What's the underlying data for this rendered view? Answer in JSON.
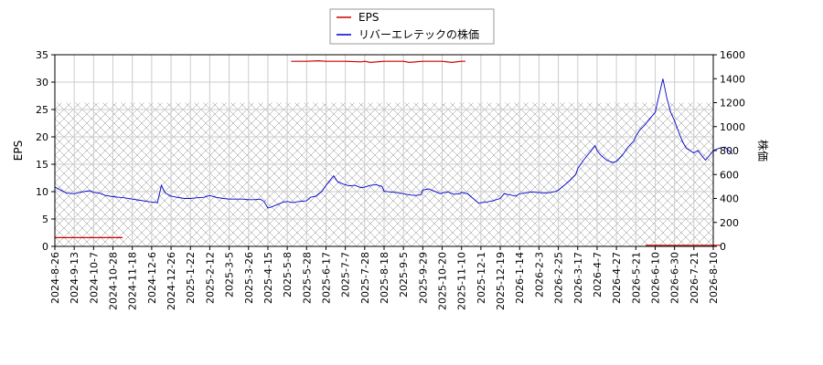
{
  "chart_data": {
    "type": "line",
    "x_tick_labels": [
      "2024-8-26",
      "2024-9-13",
      "2024-10-7",
      "2024-10-28",
      "2024-11-18",
      "2024-12-6",
      "2024-12-26",
      "2025-1-22",
      "2025-2-12",
      "2025-3-5",
      "2025-3-26",
      "2025-4-15",
      "2025-5-8",
      "2025-5-28",
      "2025-6-17",
      "2025-7-7",
      "2025-7-28",
      "2025-8-18",
      "2025-9-5",
      "2025-9-29",
      "2025-10-20",
      "2025-11-10",
      "2025-12-1",
      "2025-12-19",
      "2026-1-14",
      "2026-2-3",
      "2026-2-25",
      "2026-3-17",
      "2026-4-7",
      "2026-4-27",
      "2026-5-21",
      "2026-6-10",
      "2026-6-30",
      "2026-7-21",
      "2026-8-10"
    ],
    "left_axis": {
      "label": "EPS",
      "ylim": [
        0,
        35
      ],
      "ticks": [
        0,
        5,
        10,
        15,
        20,
        25,
        30,
        35
      ]
    },
    "right_axis": {
      "label": "株価",
      "ylim": [
        0,
        1600
      ],
      "ticks": [
        0,
        200,
        400,
        600,
        800,
        1000,
        1200,
        1400,
        1600
      ]
    },
    "legend": {
      "placement": "top-center"
    },
    "grid": true,
    "shaded_ranges": [
      {
        "x_start_index": 0,
        "x_end_index": 34,
        "y_range": [
          0,
          1200
        ],
        "axis": "right",
        "hatch": "cross"
      }
    ],
    "series": [
      {
        "name": "EPS",
        "axis": "left",
        "color": "#cc0000",
        "segments": [
          [
            [
              0,
              1.6
            ],
            [
              1,
              1.6
            ],
            [
              2,
              1.6
            ],
            [
              3,
              1.6
            ],
            [
              3.5,
              1.6
            ]
          ],
          [
            [
              12.2,
              33.8
            ],
            [
              13,
              33.8
            ],
            [
              13.6,
              33.9
            ],
            [
              14,
              33.8
            ],
            [
              15,
              33.8
            ],
            [
              15.8,
              33.7
            ],
            [
              16,
              33.8
            ],
            [
              16.3,
              33.6
            ],
            [
              17,
              33.8
            ],
            [
              18,
              33.8
            ],
            [
              18.3,
              33.6
            ],
            [
              19,
              33.8
            ],
            [
              20,
              33.8
            ],
            [
              20.5,
              33.6
            ],
            [
              21,
              33.8
            ],
            [
              21.2,
              33.8
            ]
          ],
          [
            [
              30.5,
              0.2
            ],
            [
              31,
              0.2
            ],
            [
              32,
              0.2
            ],
            [
              33,
              0.2
            ],
            [
              34,
              0.2
            ],
            [
              34.4,
              0.2
            ]
          ]
        ]
      },
      {
        "name": "リバーエレテックの株価",
        "axis": "right",
        "color": "#0000cc",
        "points": [
          [
            0,
            495
          ],
          [
            0.3,
            470
          ],
          [
            0.6,
            445
          ],
          [
            1,
            440
          ],
          [
            1.4,
            455
          ],
          [
            1.8,
            465
          ],
          [
            2,
            450
          ],
          [
            2.3,
            445
          ],
          [
            2.6,
            425
          ],
          [
            3,
            415
          ],
          [
            3.3,
            410
          ],
          [
            3.6,
            405
          ],
          [
            4,
            395
          ],
          [
            4.4,
            385
          ],
          [
            4.8,
            375
          ],
          [
            5,
            370
          ],
          [
            5.3,
            365
          ],
          [
            5.5,
            510
          ],
          [
            5.7,
            445
          ],
          [
            6,
            420
          ],
          [
            6.3,
            410
          ],
          [
            6.7,
            400
          ],
          [
            7,
            400
          ],
          [
            7.3,
            405
          ],
          [
            7.7,
            410
          ],
          [
            8,
            425
          ],
          [
            8.3,
            410
          ],
          [
            8.7,
            400
          ],
          [
            9,
            395
          ],
          [
            9.3,
            395
          ],
          [
            9.7,
            395
          ],
          [
            10,
            390
          ],
          [
            10.3,
            390
          ],
          [
            10.6,
            395
          ],
          [
            10.8,
            375
          ],
          [
            11,
            320
          ],
          [
            11.2,
            330
          ],
          [
            11.5,
            350
          ],
          [
            11.8,
            370
          ],
          [
            12,
            375
          ],
          [
            12.3,
            365
          ],
          [
            12.6,
            375
          ],
          [
            13,
            380
          ],
          [
            13.2,
            410
          ],
          [
            13.5,
            420
          ],
          [
            13.8,
            460
          ],
          [
            14,
            510
          ],
          [
            14.2,
            550
          ],
          [
            14.4,
            590
          ],
          [
            14.6,
            540
          ],
          [
            14.9,
            520
          ],
          [
            15.2,
            505
          ],
          [
            15.5,
            510
          ],
          [
            15.8,
            490
          ],
          [
            16,
            495
          ],
          [
            16.3,
            510
          ],
          [
            16.6,
            515
          ],
          [
            16.9,
            500
          ],
          [
            17,
            460
          ],
          [
            17.3,
            455
          ],
          [
            17.6,
            450
          ],
          [
            18,
            440
          ],
          [
            18.3,
            430
          ],
          [
            18.6,
            425
          ],
          [
            18.9,
            430
          ],
          [
            19,
            470
          ],
          [
            19.3,
            480
          ],
          [
            19.6,
            460
          ],
          [
            19.9,
            440
          ],
          [
            20,
            445
          ],
          [
            20.3,
            455
          ],
          [
            20.6,
            435
          ],
          [
            20.9,
            440
          ],
          [
            21,
            450
          ],
          [
            21.3,
            440
          ],
          [
            21.6,
            400
          ],
          [
            21.9,
            360
          ],
          [
            22,
            365
          ],
          [
            22.3,
            370
          ],
          [
            22.6,
            380
          ],
          [
            23,
            400
          ],
          [
            23.2,
            440
          ],
          [
            23.5,
            430
          ],
          [
            23.8,
            420
          ],
          [
            24,
            440
          ],
          [
            24.3,
            445
          ],
          [
            24.6,
            455
          ],
          [
            24.9,
            450
          ],
          [
            25,
            450
          ],
          [
            25.3,
            445
          ],
          [
            25.6,
            450
          ],
          [
            25.9,
            460
          ],
          [
            26,
            470
          ],
          [
            26.3,
            510
          ],
          [
            26.6,
            550
          ],
          [
            26.9,
            600
          ],
          [
            27,
            650
          ],
          [
            27.3,
            720
          ],
          [
            27.6,
            780
          ],
          [
            27.9,
            840
          ],
          [
            28,
            800
          ],
          [
            28.2,
            760
          ],
          [
            28.5,
            720
          ],
          [
            28.8,
            700
          ],
          [
            29,
            710
          ],
          [
            29.3,
            760
          ],
          [
            29.6,
            830
          ],
          [
            29.9,
            880
          ],
          [
            30,
            920
          ],
          [
            30.2,
            970
          ],
          [
            30.5,
            1020
          ],
          [
            30.8,
            1080
          ],
          [
            31,
            1120
          ],
          [
            31.2,
            1260
          ],
          [
            31.4,
            1400
          ],
          [
            31.6,
            1240
          ],
          [
            31.8,
            1120
          ],
          [
            32,
            1050
          ],
          [
            32.2,
            960
          ],
          [
            32.4,
            880
          ],
          [
            32.6,
            820
          ],
          [
            32.8,
            800
          ],
          [
            33,
            780
          ],
          [
            33.2,
            800
          ],
          [
            33.4,
            760
          ],
          [
            33.6,
            720
          ],
          [
            33.8,
            760
          ],
          [
            34,
            800
          ],
          [
            34.3,
            820
          ],
          [
            34.6,
            830
          ],
          [
            34.8,
            800
          ],
          [
            35,
            770
          ]
        ]
      }
    ]
  }
}
